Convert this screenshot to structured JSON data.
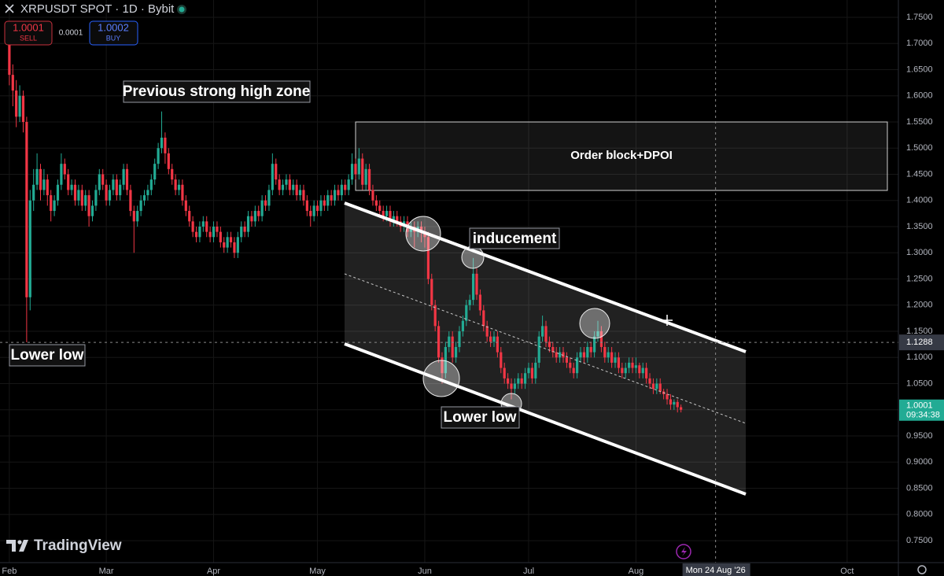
{
  "header": {
    "symbol": "XRPUSDT SPOT · 1D · Bybit",
    "sell_price": "1.0001",
    "sell_label": "SELL",
    "spread": "0.0001",
    "buy_price": "1.0002",
    "buy_label": "BUY"
  },
  "brand": "TradingView",
  "chart_data": {
    "type": "candlestick",
    "up_color": "#22ab94",
    "down_color": "#f23645",
    "grid": true,
    "xlim": [
      -2.7,
      256.8
    ],
    "xticks": [
      {
        "value": 0,
        "label": "Feb"
      },
      {
        "value": 28,
        "label": "Mar"
      },
      {
        "value": 59,
        "label": "Apr"
      },
      {
        "value": 89,
        "label": "May"
      },
      {
        "value": 120,
        "label": "Jun"
      },
      {
        "value": 150,
        "label": "Jul"
      },
      {
        "value": 181,
        "label": "Aug"
      },
      {
        "value": 242,
        "label": "Oct"
      }
    ],
    "ylim": [
      0.708,
      1.783
    ],
    "yticks": [
      {
        "value": 0.75,
        "label": "0.7500"
      },
      {
        "value": 0.8,
        "label": "0.8000"
      },
      {
        "value": 0.85,
        "label": "0.8500"
      },
      {
        "value": 0.9,
        "label": "0.9000"
      },
      {
        "value": 0.95,
        "label": "0.9500"
      },
      {
        "value": 1.0,
        "label": "1.0000"
      },
      {
        "value": 1.05,
        "label": "1.0500"
      },
      {
        "value": 1.1,
        "label": "1.1000"
      },
      {
        "value": 1.15,
        "label": "1.1500"
      },
      {
        "value": 1.2,
        "label": "1.2000"
      },
      {
        "value": 1.25,
        "label": "1.2500"
      },
      {
        "value": 1.3,
        "label": "1.3000"
      },
      {
        "value": 1.35,
        "label": "1.3500"
      },
      {
        "value": 1.4,
        "label": "1.4000"
      },
      {
        "value": 1.45,
        "label": "1.4500"
      },
      {
        "value": 1.5,
        "label": "1.5000"
      },
      {
        "value": 1.55,
        "label": "1.5500"
      },
      {
        "value": 1.6,
        "label": "1.6000"
      },
      {
        "value": 1.65,
        "label": "1.6500"
      },
      {
        "value": 1.7,
        "label": "1.7000"
      },
      {
        "value": 1.75,
        "label": "1.7500"
      }
    ],
    "crosshair_price": 1.1288,
    "crosshair_date": {
      "value": 204,
      "label": "Mon 24 Aug '26"
    },
    "last_price": 1.0001,
    "countdown": "09:34:38",
    "annotations": [
      "Previous strong high zone",
      "Order block+DPOI",
      "inducement",
      "Lower low",
      "Lower low"
    ],
    "ohlc": [
      [
        1.7,
        1.73,
        1.62,
        1.64
      ],
      [
        1.64,
        1.66,
        1.58,
        1.61
      ],
      [
        1.61,
        1.63,
        1.54,
        1.56
      ],
      [
        1.56,
        1.62,
        1.55,
        1.6
      ],
      [
        1.6,
        1.61,
        1.53,
        1.55
      ],
      [
        1.55,
        1.56,
        1.129,
        1.215
      ],
      [
        1.215,
        1.42,
        1.19,
        1.4
      ],
      [
        1.4,
        1.46,
        1.38,
        1.43
      ],
      [
        1.43,
        1.49,
        1.42,
        1.46
      ],
      [
        1.46,
        1.47,
        1.4,
        1.42
      ],
      [
        1.42,
        1.46,
        1.41,
        1.44
      ],
      [
        1.44,
        1.45,
        1.39,
        1.41
      ],
      [
        1.41,
        1.42,
        1.36,
        1.38
      ],
      [
        1.38,
        1.41,
        1.37,
        1.4
      ],
      [
        1.4,
        1.44,
        1.39,
        1.43
      ],
      [
        1.43,
        1.49,
        1.42,
        1.47
      ],
      [
        1.47,
        1.48,
        1.44,
        1.45
      ],
      [
        1.45,
        1.46,
        1.41,
        1.42
      ],
      [
        1.42,
        1.44,
        1.41,
        1.43
      ],
      [
        1.43,
        1.44,
        1.39,
        1.4
      ],
      [
        1.4,
        1.43,
        1.39,
        1.42
      ],
      [
        1.42,
        1.43,
        1.38,
        1.39
      ],
      [
        1.39,
        1.42,
        1.38,
        1.41
      ],
      [
        1.41,
        1.42,
        1.35,
        1.37
      ],
      [
        1.37,
        1.4,
        1.36,
        1.39
      ],
      [
        1.39,
        1.43,
        1.38,
        1.42
      ],
      [
        1.42,
        1.46,
        1.41,
        1.45
      ],
      [
        1.45,
        1.46,
        1.42,
        1.43
      ],
      [
        1.43,
        1.44,
        1.39,
        1.4
      ],
      [
        1.4,
        1.43,
        1.39,
        1.42
      ],
      [
        1.42,
        1.45,
        1.41,
        1.44
      ],
      [
        1.44,
        1.45,
        1.4,
        1.41
      ],
      [
        1.41,
        1.44,
        1.4,
        1.43
      ],
      [
        1.43,
        1.47,
        1.42,
        1.46
      ],
      [
        1.46,
        1.47,
        1.41,
        1.42
      ],
      [
        1.42,
        1.43,
        1.37,
        1.38
      ],
      [
        1.38,
        1.39,
        1.3,
        1.36
      ],
      [
        1.36,
        1.39,
        1.35,
        1.38
      ],
      [
        1.38,
        1.41,
        1.37,
        1.4
      ],
      [
        1.4,
        1.42,
        1.39,
        1.41
      ],
      [
        1.41,
        1.43,
        1.4,
        1.42
      ],
      [
        1.42,
        1.45,
        1.41,
        1.44
      ],
      [
        1.44,
        1.48,
        1.43,
        1.47
      ],
      [
        1.47,
        1.51,
        1.46,
        1.5
      ],
      [
        1.5,
        1.57,
        1.49,
        1.52
      ],
      [
        1.52,
        1.53,
        1.47,
        1.49
      ],
      [
        1.49,
        1.5,
        1.45,
        1.46
      ],
      [
        1.46,
        1.47,
        1.43,
        1.44
      ],
      [
        1.44,
        1.45,
        1.41,
        1.42
      ],
      [
        1.42,
        1.44,
        1.41,
        1.43
      ],
      [
        1.43,
        1.44,
        1.39,
        1.4
      ],
      [
        1.4,
        1.41,
        1.37,
        1.38
      ],
      [
        1.38,
        1.39,
        1.35,
        1.36
      ],
      [
        1.36,
        1.37,
        1.33,
        1.34
      ],
      [
        1.34,
        1.35,
        1.32,
        1.33
      ],
      [
        1.33,
        1.36,
        1.32,
        1.35
      ],
      [
        1.35,
        1.37,
        1.34,
        1.36
      ],
      [
        1.36,
        1.37,
        1.33,
        1.34
      ],
      [
        1.34,
        1.35,
        1.32,
        1.33
      ],
      [
        1.33,
        1.36,
        1.32,
        1.35
      ],
      [
        1.35,
        1.36,
        1.33,
        1.34
      ],
      [
        1.34,
        1.35,
        1.31,
        1.32
      ],
      [
        1.32,
        1.33,
        1.3,
        1.31
      ],
      [
        1.31,
        1.34,
        1.3,
        1.33
      ],
      [
        1.33,
        1.34,
        1.31,
        1.32
      ],
      [
        1.32,
        1.33,
        1.29,
        1.3
      ],
      [
        1.3,
        1.34,
        1.29,
        1.33
      ],
      [
        1.33,
        1.36,
        1.32,
        1.35
      ],
      [
        1.35,
        1.36,
        1.33,
        1.34
      ],
      [
        1.34,
        1.38,
        1.33,
        1.37
      ],
      [
        1.37,
        1.38,
        1.35,
        1.36
      ],
      [
        1.36,
        1.39,
        1.35,
        1.38
      ],
      [
        1.38,
        1.39,
        1.36,
        1.37
      ],
      [
        1.37,
        1.41,
        1.36,
        1.4
      ],
      [
        1.4,
        1.41,
        1.38,
        1.39
      ],
      [
        1.39,
        1.43,
        1.38,
        1.42
      ],
      [
        1.42,
        1.49,
        1.41,
        1.47
      ],
      [
        1.47,
        1.48,
        1.43,
        1.44
      ],
      [
        1.44,
        1.45,
        1.41,
        1.42
      ],
      [
        1.42,
        1.44,
        1.41,
        1.43
      ],
      [
        1.43,
        1.45,
        1.42,
        1.44
      ],
      [
        1.44,
        1.45,
        1.41,
        1.42
      ],
      [
        1.42,
        1.44,
        1.41,
        1.43
      ],
      [
        1.43,
        1.44,
        1.4,
        1.41
      ],
      [
        1.41,
        1.43,
        1.4,
        1.42
      ],
      [
        1.42,
        1.43,
        1.39,
        1.4
      ],
      [
        1.4,
        1.41,
        1.37,
        1.38
      ],
      [
        1.38,
        1.39,
        1.35,
        1.37
      ],
      [
        1.37,
        1.4,
        1.36,
        1.39
      ],
      [
        1.39,
        1.4,
        1.37,
        1.38
      ],
      [
        1.38,
        1.41,
        1.37,
        1.4
      ],
      [
        1.4,
        1.41,
        1.38,
        1.39
      ],
      [
        1.39,
        1.42,
        1.38,
        1.41
      ],
      [
        1.41,
        1.42,
        1.39,
        1.4
      ],
      [
        1.4,
        1.43,
        1.39,
        1.42
      ],
      [
        1.42,
        1.43,
        1.4,
        1.41
      ],
      [
        1.41,
        1.44,
        1.4,
        1.43
      ],
      [
        1.43,
        1.44,
        1.41,
        1.42
      ],
      [
        1.42,
        1.45,
        1.41,
        1.44
      ],
      [
        1.44,
        1.49,
        1.43,
        1.47
      ],
      [
        1.47,
        1.48,
        1.44,
        1.45
      ],
      [
        1.45,
        1.5,
        1.44,
        1.48
      ],
      [
        1.48,
        1.49,
        1.42,
        1.43
      ],
      [
        1.43,
        1.47,
        1.42,
        1.46
      ],
      [
        1.46,
        1.47,
        1.41,
        1.42
      ],
      [
        1.42,
        1.43,
        1.39,
        1.4
      ],
      [
        1.4,
        1.41,
        1.38,
        1.39
      ],
      [
        1.39,
        1.4,
        1.37,
        1.38
      ],
      [
        1.38,
        1.39,
        1.36,
        1.37
      ],
      [
        1.37,
        1.39,
        1.36,
        1.38
      ],
      [
        1.38,
        1.39,
        1.35,
        1.36
      ],
      [
        1.36,
        1.38,
        1.35,
        1.37
      ],
      [
        1.37,
        1.38,
        1.35,
        1.36
      ],
      [
        1.36,
        1.37,
        1.34,
        1.35
      ],
      [
        1.35,
        1.37,
        1.34,
        1.36
      ],
      [
        1.36,
        1.37,
        1.33,
        1.34
      ],
      [
        1.34,
        1.36,
        1.33,
        1.35
      ],
      [
        1.35,
        1.36,
        1.31,
        1.34
      ],
      [
        1.34,
        1.36,
        1.33,
        1.35
      ],
      [
        1.35,
        1.36,
        1.32,
        1.34
      ],
      [
        1.34,
        1.35,
        1.31,
        1.33
      ],
      [
        1.33,
        1.34,
        1.24,
        1.25
      ],
      [
        1.25,
        1.26,
        1.19,
        1.2
      ],
      [
        1.2,
        1.21,
        1.15,
        1.16
      ],
      [
        1.16,
        1.17,
        1.09,
        1.1
      ],
      [
        1.1,
        1.11,
        1.05,
        1.07
      ],
      [
        1.07,
        1.13,
        1.06,
        1.12
      ],
      [
        1.12,
        1.15,
        1.11,
        1.14
      ],
      [
        1.14,
        1.15,
        1.09,
        1.1
      ],
      [
        1.1,
        1.13,
        1.09,
        1.12
      ],
      [
        1.12,
        1.16,
        1.11,
        1.15
      ],
      [
        1.15,
        1.18,
        1.14,
        1.17
      ],
      [
        1.17,
        1.21,
        1.16,
        1.2
      ],
      [
        1.2,
        1.22,
        1.19,
        1.21
      ],
      [
        1.21,
        1.29,
        1.2,
        1.26
      ],
      [
        1.26,
        1.27,
        1.21,
        1.22
      ],
      [
        1.22,
        1.23,
        1.18,
        1.19
      ],
      [
        1.19,
        1.2,
        1.15,
        1.16
      ],
      [
        1.16,
        1.17,
        1.13,
        1.14
      ],
      [
        1.14,
        1.15,
        1.12,
        1.13
      ],
      [
        1.13,
        1.15,
        1.12,
        1.14
      ],
      [
        1.14,
        1.15,
        1.1,
        1.11
      ],
      [
        1.11,
        1.12,
        1.07,
        1.08
      ],
      [
        1.08,
        1.09,
        1.05,
        1.06
      ],
      [
        1.06,
        1.07,
        1.04,
        1.05
      ],
      [
        1.05,
        1.06,
        1.02,
        1.04
      ],
      [
        1.04,
        1.06,
        1.03,
        1.05
      ],
      [
        1.05,
        1.07,
        1.04,
        1.06
      ],
      [
        1.06,
        1.07,
        1.04,
        1.05
      ],
      [
        1.05,
        1.08,
        1.04,
        1.07
      ],
      [
        1.07,
        1.09,
        1.06,
        1.08
      ],
      [
        1.08,
        1.09,
        1.05,
        1.06
      ],
      [
        1.06,
        1.1,
        1.05,
        1.09
      ],
      [
        1.09,
        1.15,
        1.08,
        1.14
      ],
      [
        1.14,
        1.18,
        1.13,
        1.16
      ],
      [
        1.16,
        1.17,
        1.12,
        1.13
      ],
      [
        1.13,
        1.14,
        1.11,
        1.12
      ],
      [
        1.12,
        1.13,
        1.1,
        1.11
      ],
      [
        1.11,
        1.12,
        1.09,
        1.1
      ],
      [
        1.1,
        1.12,
        1.09,
        1.11
      ],
      [
        1.11,
        1.12,
        1.09,
        1.1
      ],
      [
        1.1,
        1.11,
        1.08,
        1.09
      ],
      [
        1.09,
        1.1,
        1.07,
        1.08
      ],
      [
        1.08,
        1.09,
        1.06,
        1.07
      ],
      [
        1.07,
        1.11,
        1.06,
        1.1
      ],
      [
        1.1,
        1.12,
        1.09,
        1.11
      ],
      [
        1.11,
        1.12,
        1.09,
        1.1
      ],
      [
        1.1,
        1.13,
        1.09,
        1.12
      ],
      [
        1.12,
        1.13,
        1.1,
        1.11
      ],
      [
        1.11,
        1.15,
        1.1,
        1.14
      ],
      [
        1.14,
        1.17,
        1.13,
        1.15
      ],
      [
        1.15,
        1.16,
        1.11,
        1.12
      ],
      [
        1.12,
        1.13,
        1.09,
        1.1
      ],
      [
        1.1,
        1.12,
        1.09,
        1.11
      ],
      [
        1.11,
        1.12,
        1.08,
        1.09
      ],
      [
        1.09,
        1.11,
        1.08,
        1.1
      ],
      [
        1.1,
        1.11,
        1.07,
        1.08
      ],
      [
        1.08,
        1.09,
        1.06,
        1.07
      ],
      [
        1.07,
        1.09,
        1.06,
        1.08
      ],
      [
        1.08,
        1.1,
        1.07,
        1.09
      ],
      [
        1.09,
        1.1,
        1.07,
        1.08
      ],
      [
        1.08,
        1.1,
        1.07,
        1.085
      ],
      [
        1.085,
        1.09,
        1.06,
        1.07
      ],
      [
        1.07,
        1.09,
        1.06,
        1.08
      ],
      [
        1.08,
        1.09,
        1.05,
        1.06
      ],
      [
        1.06,
        1.07,
        1.04,
        1.05
      ],
      [
        1.05,
        1.06,
        1.03,
        1.04
      ],
      [
        1.04,
        1.06,
        1.03,
        1.05
      ],
      [
        1.05,
        1.06,
        1.03,
        1.035
      ],
      [
        1.035,
        1.04,
        1.02,
        1.03
      ],
      [
        1.03,
        1.04,
        1.01,
        1.02
      ],
      [
        1.02,
        1.03,
        1.0,
        1.01
      ],
      [
        1.01,
        1.02,
        1.0,
        1.015
      ],
      [
        1.015,
        1.02,
        0.995,
        1.005
      ],
      [
        1.005,
        1.01,
        0.995,
        1.0001
      ]
    ]
  }
}
